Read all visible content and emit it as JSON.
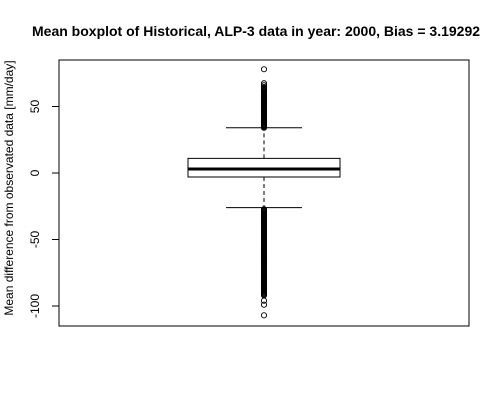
{
  "chart_data": {
    "type": "box",
    "title": "Mean boxplot of Historical, ALP-3 data in year: 2000, Bias = 3.19292",
    "xlabel": "",
    "ylabel": "Mean difference from observated data [mm/day]",
    "ylim": [
      -115,
      85
    ],
    "yticks": [
      -100,
      -50,
      0,
      50
    ],
    "ytick_labels": [
      "-100",
      "-50",
      "0",
      "50"
    ],
    "grid": false,
    "box": {
      "lower_whisker": -26,
      "q1": -3,
      "median": 3,
      "q3": 11,
      "upper_whisker": 34
    },
    "outliers_upper_range": [
      34,
      65
    ],
    "outliers_lower_range": [
      -92,
      -27
    ],
    "outliers_sparse": [
      66,
      67.5,
      78,
      -96,
      -99,
      -107
    ]
  }
}
